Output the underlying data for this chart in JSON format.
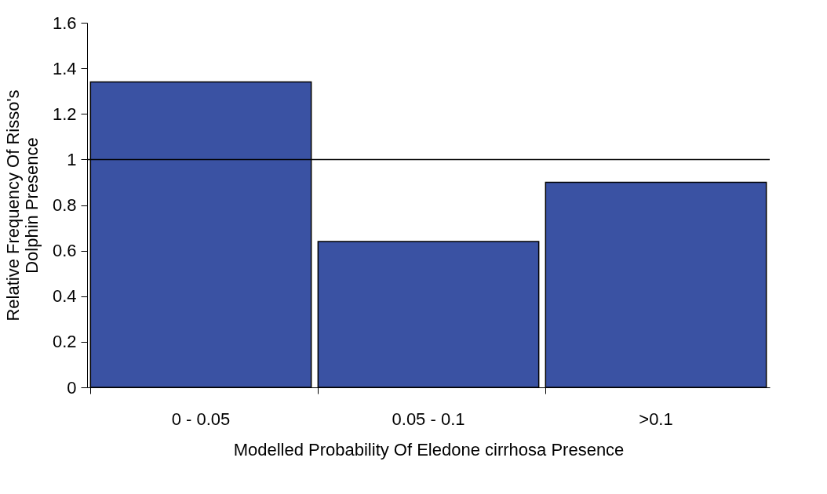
{
  "chart_data": {
    "type": "bar",
    "xlabel": "Modelled Probability Of Eledone cirrhosa Presence",
    "ylabel": "Relative Frequency Of Risso's Dolphin Presence",
    "categories": [
      "0 - 0.05",
      "0.05 - 0.1",
      ">0.1"
    ],
    "values": [
      1.34,
      0.64,
      0.9
    ],
    "color": "#3a52a3",
    "ylim": [
      0,
      1.6
    ],
    "yticks": [
      0,
      0.2,
      0.4,
      0.6,
      0.8,
      1,
      1.2,
      1.4,
      1.6
    ],
    "ref_lines": [
      {
        "axis": "y",
        "value": 1,
        "color": "#000000"
      }
    ],
    "grid": false
  }
}
